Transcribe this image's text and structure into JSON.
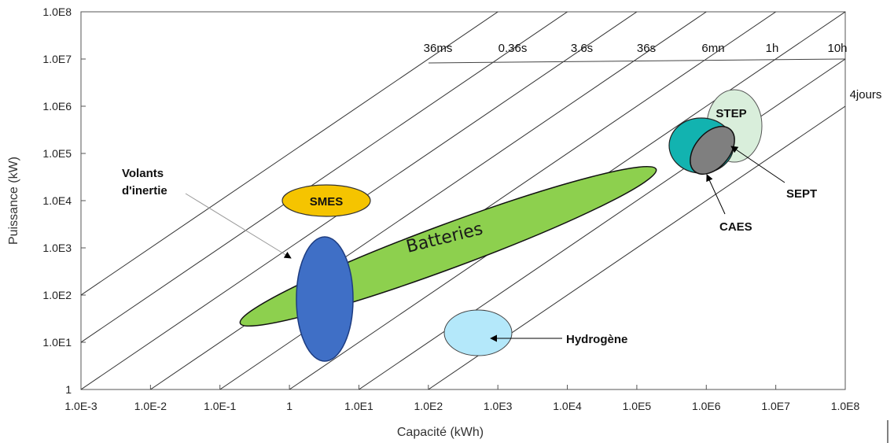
{
  "chart_data": {
    "type": "scatter",
    "xlabel": "Capacité (kWh)",
    "ylabel": "Puissance (kW)",
    "x_scale": "log",
    "y_scale": "log",
    "xlim": [
      "1.0E-3",
      "1.0E8"
    ],
    "ylim": [
      "1",
      "1.0E8"
    ],
    "x_ticks": [
      "1.0E-3",
      "1.0E-2",
      "1.0E-1",
      "1",
      "1.0E1",
      "1.0E2",
      "1.0E3",
      "1.0E4",
      "1.0E5",
      "1.0E6",
      "1.0E7",
      "1.0E8"
    ],
    "y_ticks": [
      "1",
      "1.0E1",
      "1.0E2",
      "1.0E3",
      "1.0E4",
      "1.0E5",
      "1.0E6",
      "1.0E7",
      "1.0E8"
    ],
    "duration_lines": [
      {
        "label": "36ms",
        "hours": 1e-05
      },
      {
        "label": "0.36s",
        "hours": 0.0001
      },
      {
        "label": "3.6s",
        "hours": 0.001
      },
      {
        "label": "36s",
        "hours": 0.01
      },
      {
        "label": "6mn",
        "hours": 0.1
      },
      {
        "label": "1h",
        "hours": 1
      },
      {
        "label": "10h",
        "hours": 10
      },
      {
        "label": "4jours",
        "hours": 100
      }
    ],
    "regions": [
      {
        "name": "SMES",
        "label": "SMES",
        "x_range": [
          0.15,
          30
        ],
        "y_range": [
          4000,
          30000
        ],
        "color": "#f5c400"
      },
      {
        "name": "Batteries",
        "label": "Batteries",
        "x_range": [
          0.02,
          400000
        ],
        "y_range": [
          30,
          40000
        ],
        "color": "#8dd04e"
      },
      {
        "name": "Volants d'inertie",
        "label": "Volants\nd'inertie",
        "x_range": [
          1,
          50
        ],
        "y_range": [
          5,
          3000
        ],
        "color": "#3f6fc6"
      },
      {
        "name": "Hydrogène",
        "label": "Hydrogène",
        "x_range": [
          100,
          5000
        ],
        "y_range": [
          4,
          70
        ],
        "color": "#b4e8fa"
      },
      {
        "name": "STEP",
        "label": "STEP",
        "x_range": [
          1000000,
          10000000
        ],
        "y_range": [
          20000,
          2000000
        ],
        "color": "#d9eedb"
      },
      {
        "name": "CAES",
        "label": "CAES",
        "x_range": [
          300000,
          5000000
        ],
        "y_range": [
          15000,
          300000
        ],
        "color": "#12b3b0"
      },
      {
        "name": "SEPT",
        "label": "SEPT",
        "x_range": [
          800000,
          5000000
        ],
        "y_range": [
          15000,
          200000
        ],
        "color": "#7f7f7f"
      }
    ]
  }
}
